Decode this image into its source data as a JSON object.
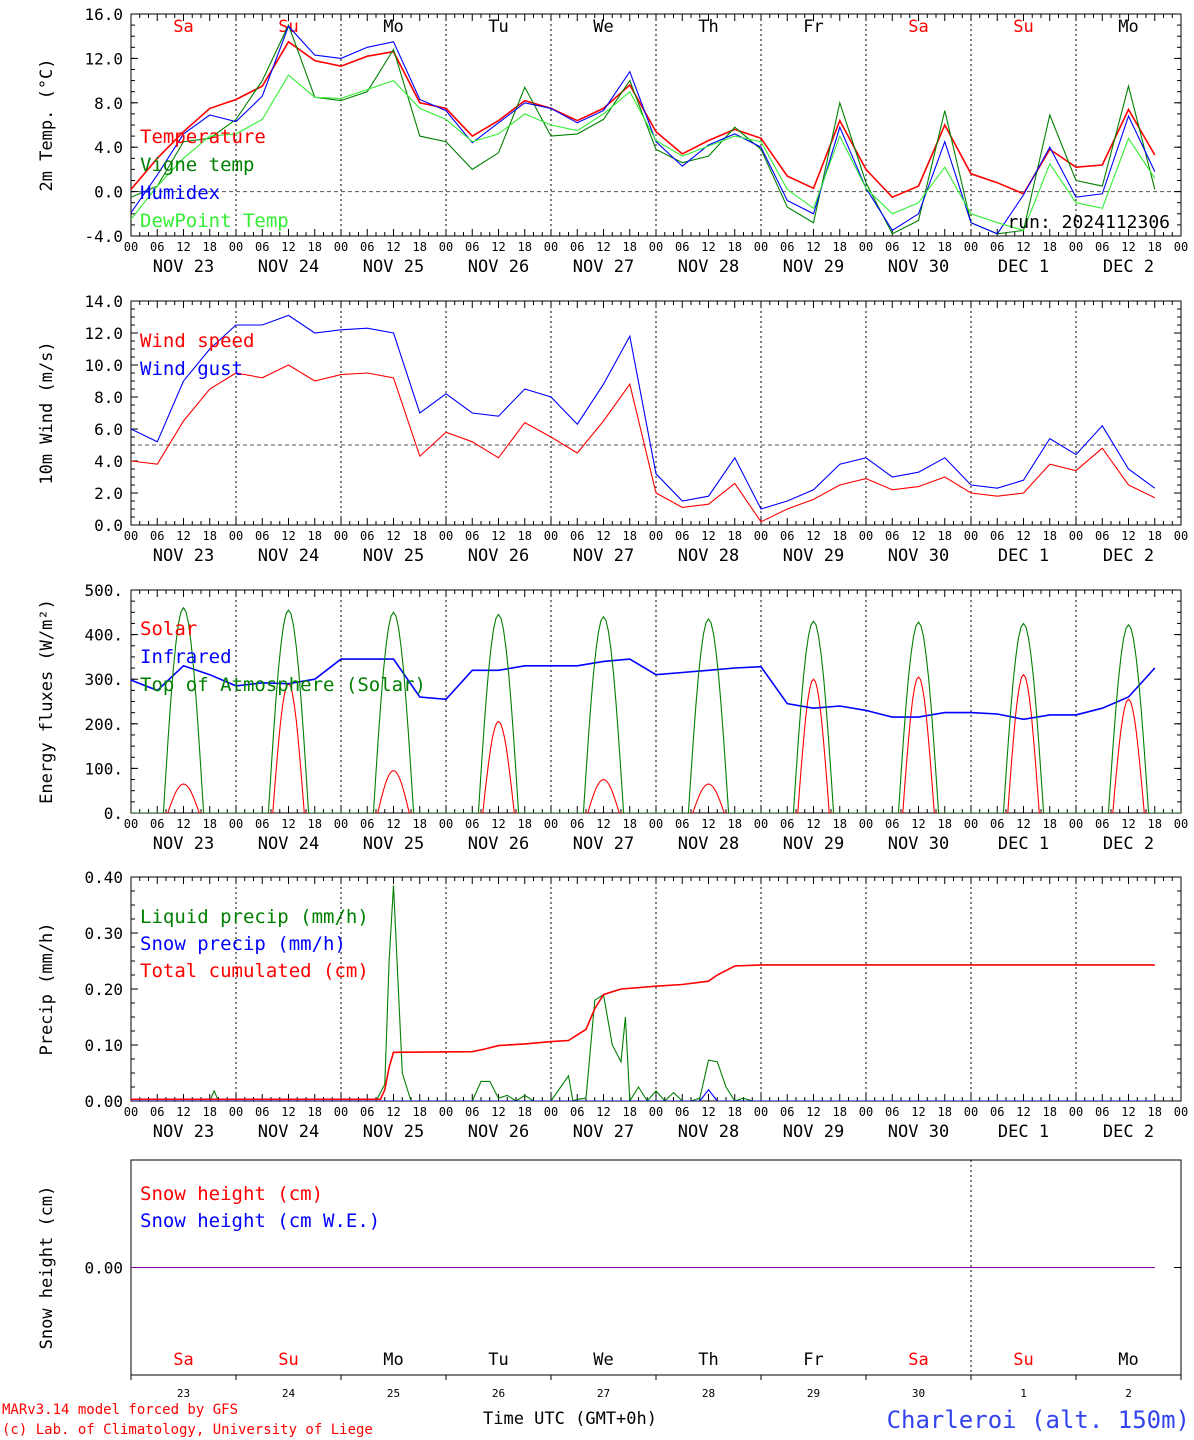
{
  "run_label": "run: 2024112306",
  "footer": {
    "model": "MARv3.14 model forced by GFS",
    "lab": "(c) Lab. of Climatology, University of Liege",
    "time_axis": "Time UTC (GMT+0h)",
    "station": "Charleroi (alt. 150m)"
  },
  "axis": {
    "hour_ticks": [
      "00",
      "06",
      "12",
      "18"
    ],
    "days": [
      {
        "abbr": "Sa",
        "date": "NOV 23",
        "num": "23",
        "weekend": true
      },
      {
        "abbr": "Su",
        "date": "NOV 24",
        "num": "24",
        "weekend": true
      },
      {
        "abbr": "Mo",
        "date": "NOV 25",
        "num": "25",
        "weekend": false
      },
      {
        "abbr": "Tu",
        "date": "NOV 26",
        "num": "26",
        "weekend": false
      },
      {
        "abbr": "We",
        "date": "NOV 27",
        "num": "27",
        "weekend": false
      },
      {
        "abbr": "Th",
        "date": "NOV 28",
        "num": "28",
        "weekend": false
      },
      {
        "abbr": "Fr",
        "date": "NOV 29",
        "num": "29",
        "weekend": false
      },
      {
        "abbr": "Sa",
        "date": "NOV 30",
        "num": "30",
        "weekend": true
      },
      {
        "abbr": "Su",
        "date": "DEC  1",
        "num": "1",
        "weekend": true
      },
      {
        "abbr": "Mo",
        "date": "DEC  2",
        "num": "2",
        "weekend": false
      }
    ]
  },
  "colors": {
    "red": "#ff0000",
    "dark_green": "#008000",
    "blue": "#0000ff",
    "light_green": "#33ee33",
    "purple": "#8000a0",
    "station": "#3344ee"
  },
  "chart_data": [
    {
      "type": "line",
      "ylabel": "2m Temp. (°C)",
      "ylim": [
        -4,
        16
      ],
      "yticks": [
        "-4.0",
        "0.0",
        "4.0",
        "8.0",
        "12.0",
        "16.0"
      ],
      "yticks_values": [
        -4,
        0,
        4,
        8,
        12,
        16
      ],
      "ref_line": 0,
      "x_unit": "hours since NOV 23 00 UTC",
      "series": [
        {
          "name": "Temperature",
          "color": "#ff0000",
          "x": [
            0,
            6,
            12,
            18,
            24,
            30,
            36,
            42,
            48,
            54,
            60,
            66,
            72,
            78,
            84,
            90,
            96,
            102,
            108,
            114,
            120,
            126,
            132,
            138,
            144,
            150,
            156,
            162,
            168,
            174,
            180,
            186,
            192,
            198,
            204,
            210,
            216,
            222,
            228,
            234
          ],
          "y": [
            0.2,
            3.0,
            5.4,
            7.5,
            8.3,
            9.5,
            13.5,
            11.8,
            11.3,
            12.2,
            12.6,
            8.0,
            7.5,
            5.0,
            6.4,
            8.2,
            7.5,
            6.4,
            7.5,
            9.6,
            5.4,
            3.4,
            4.6,
            5.6,
            4.8,
            1.4,
            0.3,
            6.4,
            2.0,
            -0.5,
            0.5,
            6.0,
            1.6,
            0.8,
            -0.2,
            3.8,
            2.2,
            2.4,
            7.4,
            3.3
          ]
        },
        {
          "name": "Vigne temp",
          "color": "#008000",
          "x": [
            0,
            6,
            12,
            18,
            24,
            30,
            36,
            42,
            48,
            54,
            60,
            66,
            72,
            78,
            84,
            90,
            96,
            102,
            108,
            114,
            120,
            126,
            132,
            138,
            144,
            150,
            156,
            162,
            168,
            174,
            180,
            186,
            192,
            198,
            204,
            210,
            216,
            222,
            228,
            234
          ],
          "y": [
            -0.5,
            0.5,
            4.5,
            4.8,
            6.5,
            10.0,
            15.0,
            8.5,
            8.2,
            9.0,
            12.8,
            5.0,
            4.5,
            2.0,
            3.5,
            9.4,
            5.0,
            5.2,
            6.5,
            10.0,
            3.8,
            2.6,
            3.2,
            5.8,
            3.8,
            -1.4,
            -2.8,
            8.0,
            0.8,
            -3.8,
            -2.6,
            7.3,
            -2.8,
            -3.8,
            -3.5,
            6.9,
            1.0,
            0.5,
            9.5,
            0.2
          ]
        },
        {
          "name": "Humidex",
          "color": "#0000ff",
          "x": [
            0,
            6,
            12,
            18,
            24,
            30,
            36,
            42,
            48,
            54,
            60,
            66,
            72,
            78,
            84,
            90,
            96,
            102,
            108,
            114,
            120,
            126,
            132,
            138,
            144,
            150,
            156,
            162,
            168,
            174,
            180,
            186,
            192,
            198,
            204,
            210,
            216,
            222,
            228,
            234
          ],
          "y": [
            -1.9,
            1.5,
            5.2,
            6.9,
            6.3,
            8.6,
            14.9,
            12.3,
            12.0,
            13.0,
            13.5,
            8.3,
            7.3,
            4.4,
            6.2,
            8.0,
            7.5,
            6.2,
            7.3,
            10.8,
            4.5,
            2.3,
            4.2,
            5.2,
            4.0,
            -0.8,
            -2.0,
            5.8,
            0.3,
            -3.5,
            -2.0,
            4.5,
            -2.8,
            -3.8,
            -0.3,
            4.0,
            -0.5,
            -0.2,
            6.8,
            1.8
          ]
        },
        {
          "name": "DewPoint Temp",
          "color": "#33ee33",
          "x": [
            0,
            6,
            12,
            18,
            24,
            30,
            36,
            42,
            48,
            54,
            60,
            66,
            72,
            78,
            84,
            90,
            96,
            102,
            108,
            114,
            120,
            126,
            132,
            138,
            144,
            150,
            156,
            162,
            168,
            174,
            180,
            186,
            192,
            198,
            204,
            210,
            216,
            222,
            228,
            234
          ],
          "y": [
            -2.5,
            0.5,
            3.0,
            5.0,
            5.2,
            6.5,
            10.5,
            8.5,
            8.4,
            9.2,
            10.0,
            7.5,
            6.5,
            4.5,
            5.2,
            7.0,
            6.0,
            5.5,
            7.0,
            9.0,
            4.6,
            3.2,
            4.1,
            5.0,
            4.5,
            0.2,
            -1.5,
            5.0,
            0.3,
            -2.0,
            -1.0,
            2.2,
            -2.0,
            -2.8,
            -3.5,
            2.5,
            -1.0,
            -1.5,
            4.8,
            1.2
          ]
        }
      ]
    },
    {
      "type": "line",
      "ylabel": "10m Wind (m/s)",
      "ylim": [
        0,
        14
      ],
      "yticks": [
        "0.0",
        "2.0",
        "4.0",
        "6.0",
        "8.0",
        "10.0",
        "12.0",
        "14.0"
      ],
      "yticks_values": [
        0,
        2,
        4,
        6,
        8,
        10,
        12,
        14
      ],
      "ref_line": 5,
      "x_unit": "hours since NOV 23 00 UTC",
      "series": [
        {
          "name": "Wind speed",
          "color": "#ff0000",
          "x": [
            0,
            6,
            12,
            18,
            24,
            30,
            36,
            42,
            48,
            54,
            60,
            66,
            72,
            78,
            84,
            90,
            96,
            102,
            108,
            114,
            120,
            126,
            132,
            138,
            144,
            150,
            156,
            162,
            168,
            174,
            180,
            186,
            192,
            198,
            204,
            210,
            216,
            222,
            228,
            234
          ],
          "y": [
            4.0,
            3.8,
            6.5,
            8.5,
            9.5,
            9.2,
            10.0,
            9.0,
            9.4,
            9.5,
            9.2,
            4.3,
            5.8,
            5.2,
            4.2,
            6.4,
            5.5,
            4.5,
            6.5,
            8.8,
            2.0,
            1.1,
            1.3,
            2.6,
            0.2,
            1.0,
            1.6,
            2.5,
            2.9,
            2.2,
            2.4,
            3.0,
            2.0,
            1.8,
            2.0,
            3.8,
            3.4,
            4.8,
            2.5,
            1.7
          ]
        },
        {
          "name": "Wind gust",
          "color": "#0000ff",
          "x": [
            0,
            6,
            12,
            18,
            24,
            30,
            36,
            42,
            48,
            54,
            60,
            66,
            72,
            78,
            84,
            90,
            96,
            102,
            108,
            114,
            120,
            126,
            132,
            138,
            144,
            150,
            156,
            162,
            168,
            174,
            180,
            186,
            192,
            198,
            204,
            210,
            216,
            222,
            228,
            234
          ],
          "y": [
            6.0,
            5.2,
            9.0,
            11.0,
            12.5,
            12.5,
            13.1,
            12.0,
            12.2,
            12.3,
            12.0,
            7.0,
            8.2,
            7.0,
            6.8,
            8.5,
            8.0,
            6.3,
            8.8,
            11.8,
            3.2,
            1.5,
            1.8,
            4.2,
            1.0,
            1.5,
            2.2,
            3.8,
            4.2,
            3.0,
            3.3,
            4.2,
            2.5,
            2.3,
            2.8,
            5.4,
            4.4,
            6.2,
            3.5,
            2.3
          ]
        }
      ]
    },
    {
      "type": "line",
      "ylabel": "Energy fluxes (W/m²)",
      "ylim": [
        0,
        500
      ],
      "yticks": [
        "0.",
        "100.",
        "200.",
        "300.",
        "400.",
        "500."
      ],
      "yticks_values": [
        0,
        100,
        200,
        300,
        400,
        500
      ],
      "x_unit": "hours since NOV 23 00 UTC",
      "series": [
        {
          "name": "Solar",
          "color": "#ff0000",
          "peaks": [
            [
              12,
              65
            ],
            [
              36,
              290
            ],
            [
              60,
              95
            ],
            [
              84,
              205
            ],
            [
              108,
              75
            ],
            [
              132,
              65
            ],
            [
              156,
              300
            ],
            [
              180,
              305
            ],
            [
              204,
              310
            ],
            [
              228,
              255
            ]
          ]
        },
        {
          "name": "Infrared",
          "color": "#0000ff",
          "x": [
            0,
            6,
            12,
            18,
            24,
            30,
            36,
            42,
            48,
            54,
            60,
            66,
            72,
            78,
            84,
            90,
            96,
            102,
            108,
            114,
            120,
            126,
            132,
            138,
            144,
            150,
            156,
            162,
            168,
            174,
            180,
            186,
            192,
            198,
            204,
            210,
            216,
            222,
            228,
            234
          ],
          "y": [
            298,
            275,
            330,
            310,
            285,
            292,
            290,
            300,
            345,
            345,
            345,
            260,
            255,
            320,
            320,
            330,
            330,
            330,
            340,
            345,
            310,
            315,
            320,
            325,
            328,
            245,
            235,
            240,
            230,
            215,
            215,
            225,
            225,
            222,
            210,
            220,
            220,
            235,
            260,
            325
          ]
        },
        {
          "name": "Top of Atmosphere (Solar)",
          "color": "#008000",
          "peaks": [
            [
              12,
              460
            ],
            [
              36,
              455
            ],
            [
              60,
              450
            ],
            [
              84,
              445
            ],
            [
              108,
              440
            ],
            [
              132,
              435
            ],
            [
              156,
              430
            ],
            [
              180,
              428
            ],
            [
              204,
              425
            ],
            [
              228,
              422
            ]
          ]
        }
      ]
    },
    {
      "type": "line",
      "ylabel": "Precip (mm/h)",
      "ylim": [
        0,
        0.4
      ],
      "yticks": [
        "0.00",
        "0.10",
        "0.20",
        "0.30",
        "0.40"
      ],
      "yticks_values": [
        0,
        0.1,
        0.2,
        0.3,
        0.4
      ],
      "x_unit": "hours since NOV 23 00 UTC",
      "series": [
        {
          "name": "Liquid precip (mm/h)",
          "color": "#008000",
          "x": [
            0,
            18,
            19,
            20,
            24,
            56,
            58,
            59,
            60,
            62,
            64,
            66,
            78,
            80,
            82,
            84,
            86,
            88,
            90,
            92,
            94,
            96,
            100,
            101,
            102,
            104,
            106,
            108,
            110,
            112,
            113,
            114,
            116,
            118,
            120,
            122,
            124,
            126,
            128,
            130,
            132,
            134,
            136,
            138,
            140,
            142,
            144,
            234
          ],
          "y": [
            0,
            0,
            0.018,
            0,
            0,
            0,
            0.03,
            0.25,
            0.385,
            0.05,
            0,
            0,
            0,
            0.035,
            0.035,
            0.005,
            0.01,
            0,
            0.01,
            0,
            0,
            0,
            0.045,
            0,
            0.003,
            0.005,
            0.18,
            0.19,
            0.1,
            0.07,
            0.15,
            0,
            0.025,
            0,
            0.018,
            0,
            0.015,
            0,
            0,
            0.005,
            0.073,
            0.07,
            0.025,
            0,
            0.005,
            0,
            0,
            0
          ]
        },
        {
          "name": "Snow precip (mm/h)",
          "color": "#0000ff",
          "x": [
            0,
            130,
            132,
            133,
            134,
            234
          ],
          "y": [
            0,
            0,
            0.02,
            0.01,
            0,
            0
          ]
        },
        {
          "name": "Total cumulated (cm)",
          "color": "#ff0000",
          "x": [
            0,
            57,
            58,
            59,
            60,
            78,
            81,
            84,
            90,
            96,
            100,
            104,
            106,
            108,
            112,
            120,
            126,
            132,
            134,
            138,
            144,
            234
          ],
          "y": [
            0.003,
            0.003,
            0.02,
            0.06,
            0.087,
            0.088,
            0.093,
            0.099,
            0.102,
            0.106,
            0.108,
            0.128,
            0.165,
            0.19,
            0.2,
            0.205,
            0.208,
            0.214,
            0.225,
            0.241,
            0.243,
            0.243
          ]
        }
      ]
    },
    {
      "type": "line",
      "ylabel": "Snow height (cm)",
      "yticks": [
        "0.00"
      ],
      "x_unit": "hours since NOV 23 00 UTC",
      "series": [
        {
          "name": "Snow height (cm)",
          "color": "#ff0000",
          "x": [
            0,
            234
          ],
          "y": [
            0,
            0
          ]
        },
        {
          "name": "Snow height (cm W.E.)",
          "color": "#0000ff",
          "x": [
            0,
            234
          ],
          "y": [
            0,
            0
          ]
        }
      ]
    }
  ]
}
